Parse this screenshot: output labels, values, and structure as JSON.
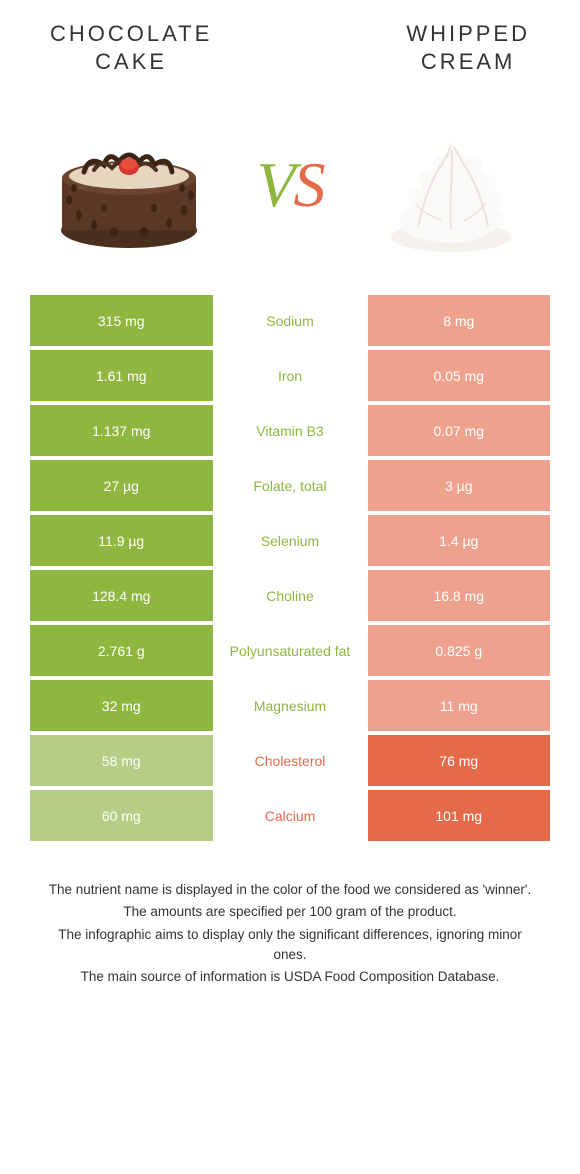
{
  "header": {
    "left_title_l1": "CHOCOLATE",
    "left_title_l2": "CAKE",
    "right_title_l1": "WHIPPED",
    "right_title_l2": "CREAM"
  },
  "vs": {
    "v": "V",
    "s": "S"
  },
  "colors": {
    "left_color": "#8fb63f",
    "left_dim": "#b5cd84",
    "right_color": "#e46a4a",
    "right_dim": "#eea28e",
    "text": "#333333"
  },
  "rows": [
    {
      "nutrient": "Sodium",
      "left": "315 mg",
      "right": "8 mg",
      "winner": "left"
    },
    {
      "nutrient": "Iron",
      "left": "1.61 mg",
      "right": "0.05 mg",
      "winner": "left"
    },
    {
      "nutrient": "Vitamin B3",
      "left": "1.137 mg",
      "right": "0.07 mg",
      "winner": "left"
    },
    {
      "nutrient": "Folate, total",
      "left": "27 µg",
      "right": "3 µg",
      "winner": "left"
    },
    {
      "nutrient": "Selenium",
      "left": "11.9 µg",
      "right": "1.4 µg",
      "winner": "left"
    },
    {
      "nutrient": "Choline",
      "left": "128.4 mg",
      "right": "16.8 mg",
      "winner": "left"
    },
    {
      "nutrient": "Polyunsaturated fat",
      "left": "2.761 g",
      "right": "0.825 g",
      "winner": "left"
    },
    {
      "nutrient": "Magnesium",
      "left": "32 mg",
      "right": "11 mg",
      "winner": "left"
    },
    {
      "nutrient": "Cholesterol",
      "left": "58 mg",
      "right": "76 mg",
      "winner": "right"
    },
    {
      "nutrient": "Calcium",
      "left": "60 mg",
      "right": "101 mg",
      "winner": "right"
    }
  ],
  "footer": {
    "l1": "The nutrient name is displayed in the color of the food we considered as 'winner'.",
    "l2": "The amounts are specified per 100 gram of the product.",
    "l3": "The infographic aims to display only the significant differences, ignoring minor ones.",
    "l4": "The main source of information is USDA Food Composition Database."
  }
}
